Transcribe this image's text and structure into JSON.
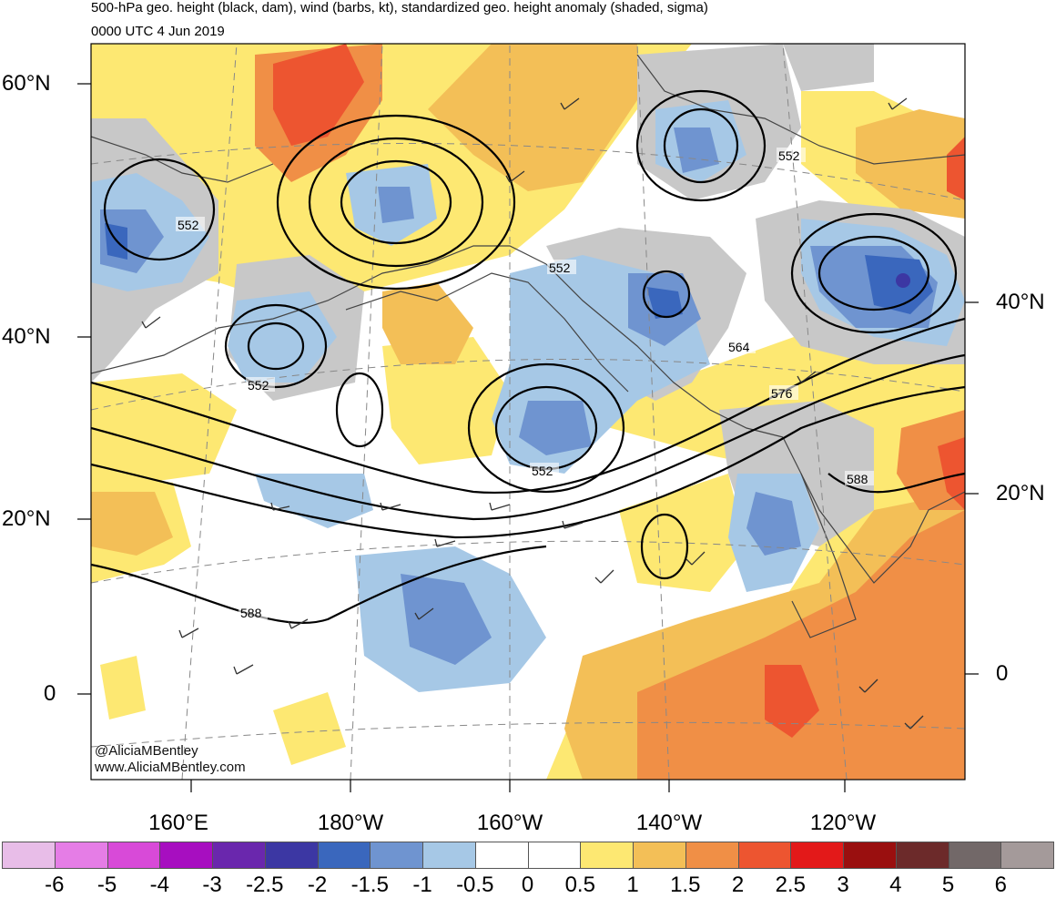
{
  "title": {
    "line1": "500-hPa geo. height (black, dam), wind (barbs, kt), standardized geo. height anomaly (shaded, sigma)",
    "line2": "0000 UTC 4 Jun 2019"
  },
  "map": {
    "lat_labels_left": [
      "60°N",
      "40°N",
      "20°N",
      "0"
    ],
    "lat_labels_right": [
      "40°N",
      "20°N",
      "0"
    ],
    "lon_labels": [
      "160°E",
      "180°W",
      "160°W",
      "140°W",
      "120°W"
    ],
    "contour_labels": [
      "552",
      "552",
      "552",
      "552",
      "552",
      "564",
      "576",
      "588",
      "588"
    ],
    "credit_line1": "@AliciaMBentley",
    "credit_line2": "www.AliciaMBentley.com"
  },
  "colorbar": {
    "labels": [
      "-6",
      "-5",
      "-4",
      "-3",
      "-2.5",
      "-2",
      "-1.5",
      "-1",
      "-0.5",
      "0",
      "0.5",
      "1",
      "1.5",
      "2",
      "2.5",
      "3",
      "4",
      "5",
      "6"
    ],
    "colors": [
      "#e8bde8",
      "#e57de6",
      "#d84ad8",
      "#a70ec0",
      "#6a27ad",
      "#3c37a3",
      "#3a67bd",
      "#6f94d0",
      "#a6c8e6",
      "#ffffff",
      "#ffffff",
      "#fde872",
      "#f3bf57",
      "#f08f46",
      "#ed5530",
      "#e31919",
      "#9a0f0f",
      "#6c2a2a",
      "#726868",
      "#a49a9a"
    ]
  }
}
